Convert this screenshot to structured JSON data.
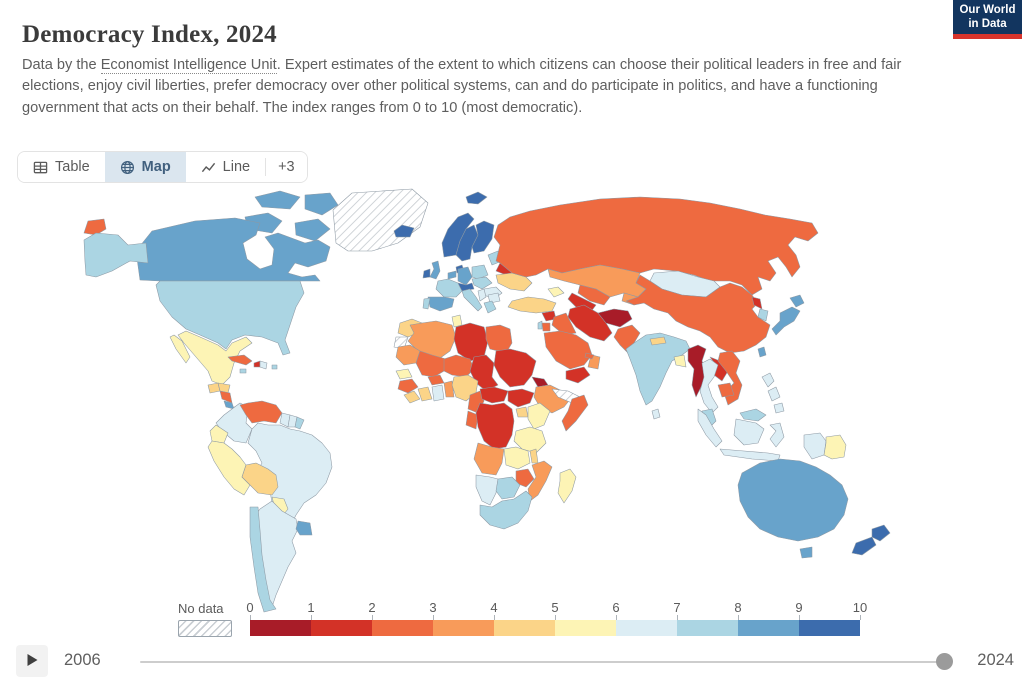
{
  "branding": {
    "logo_text": "Our World in Data"
  },
  "header": {
    "title": "Democracy Index, 2024"
  },
  "subtitle": {
    "prefix": "Data by the ",
    "link_text": "Economist Intelligence Unit",
    "suffix": ". Expert estimates of the extent to which citizens can choose their political leaders in free and fair elections, enjoy civil liberties, prefer democracy over other political systems, can and do participate in politics, and have a functioning government that acts on their behalf. The index ranges from 0 to 10 (most democratic)."
  },
  "tabs": [
    {
      "label": "Table",
      "icon": "table-icon",
      "active": false
    },
    {
      "label": "Map",
      "icon": "globe-icon",
      "active": true
    },
    {
      "label": "Line",
      "icon": "line-chart-icon",
      "active": false
    },
    {
      "label": "+3",
      "icon": null,
      "active": false
    }
  ],
  "legend": {
    "no_data_label": "No data",
    "ticks": [
      "0",
      "1",
      "2",
      "3",
      "4",
      "5",
      "6",
      "7",
      "8",
      "9",
      "10"
    ]
  },
  "timeline": {
    "start_year": "2006",
    "end_year": "2024",
    "handle_position": "end"
  },
  "chart_data": {
    "type": "heatmap",
    "subtype": "choropleth-world-map",
    "title": "Democracy Index, 2024",
    "value_range": [
      0,
      10
    ],
    "legend_position": "bottom",
    "no_data_style": "diagonal-hatch",
    "legend_bins": [
      {
        "min": 0,
        "max": 1,
        "color": "#a81c28"
      },
      {
        "min": 1,
        "max": 2,
        "color": "#d33227"
      },
      {
        "min": 2,
        "max": 3,
        "color": "#ee6a40"
      },
      {
        "min": 3,
        "max": 4,
        "color": "#f89b5a"
      },
      {
        "min": 4,
        "max": 5,
        "color": "#fbd488"
      },
      {
        "min": 5,
        "max": 6,
        "color": "#fdf4b5"
      },
      {
        "min": 6,
        "max": 7,
        "color": "#dcedf4"
      },
      {
        "min": 7,
        "max": 8,
        "color": "#abd5e3"
      },
      {
        "min": 8,
        "max": 9,
        "color": "#68a3cb"
      },
      {
        "min": 9,
        "max": 10,
        "color": "#3c6cad"
      }
    ],
    "countries": [
      {
        "name": "Canada",
        "value": 8.69
      },
      {
        "name": "United States",
        "value": 7.85
      },
      {
        "name": "Greenland",
        "value": null
      },
      {
        "name": "Iceland",
        "value": 9.45
      },
      {
        "name": "Mexico",
        "value": 5.32
      },
      {
        "name": "Guatemala",
        "value": 4.31
      },
      {
        "name": "Honduras",
        "value": 4.95
      },
      {
        "name": "Nicaragua",
        "value": 2.26
      },
      {
        "name": "Costa Rica",
        "value": 8.29
      },
      {
        "name": "Panama",
        "value": 6.75
      },
      {
        "name": "Cuba",
        "value": 2.5
      },
      {
        "name": "Haiti",
        "value": 1.36
      },
      {
        "name": "Dominican Republic",
        "value": 6.25
      },
      {
        "name": "Jamaica",
        "value": 7.06
      },
      {
        "name": "Puerto Rico",
        "value": 7.4
      },
      {
        "name": "Colombia",
        "value": 6.55
      },
      {
        "name": "Venezuela",
        "value": 2.23
      },
      {
        "name": "Guyana",
        "value": 6.26
      },
      {
        "name": "Suriname",
        "value": 6.6
      },
      {
        "name": "France (Guiana)",
        "value": 7.99
      },
      {
        "name": "Ecuador",
        "value": 5.45
      },
      {
        "name": "Peru",
        "value": 5.5
      },
      {
        "name": "Brazil",
        "value": 6.78
      },
      {
        "name": "Bolivia",
        "value": 4.2
      },
      {
        "name": "Paraguay",
        "value": 5.85
      },
      {
        "name": "Chile",
        "value": 7.95
      },
      {
        "name": "Argentina",
        "value": 6.62
      },
      {
        "name": "Uruguay",
        "value": 8.67
      },
      {
        "name": "Norway",
        "value": 9.81
      },
      {
        "name": "Sweden",
        "value": 9.39
      },
      {
        "name": "Finland",
        "value": 9.3
      },
      {
        "name": "Denmark",
        "value": 9.28
      },
      {
        "name": "United Kingdom",
        "value": 8.34
      },
      {
        "name": "Ireland",
        "value": 9.19
      },
      {
        "name": "Netherlands",
        "value": 8.96
      },
      {
        "name": "Germany",
        "value": 8.73
      },
      {
        "name": "France",
        "value": 7.99
      },
      {
        "name": "Spain",
        "value": 8.07
      },
      {
        "name": "Portugal",
        "value": 7.8
      },
      {
        "name": "Italy",
        "value": 7.69
      },
      {
        "name": "Switzerland",
        "value": 9.32
      },
      {
        "name": "Poland",
        "value": 7.18
      },
      {
        "name": "Czechia",
        "value": 7.97
      },
      {
        "name": "Lithuania",
        "value": 7.59
      },
      {
        "name": "Belarus",
        "value": 1.99
      },
      {
        "name": "Ukraine",
        "value": 4.9
      },
      {
        "name": "Romania",
        "value": 6.45
      },
      {
        "name": "Serbia",
        "value": 6.3
      },
      {
        "name": "Bulgaria",
        "value": 6.5
      },
      {
        "name": "Greece",
        "value": 7.86
      },
      {
        "name": "Russia",
        "value": 2.03
      },
      {
        "name": "Svalbard",
        "value": 9.81
      },
      {
        "name": "Turkey",
        "value": 4.26
      },
      {
        "name": "Georgia",
        "value": 5.2
      },
      {
        "name": "Kazakhstan",
        "value": 3.08
      },
      {
        "name": "Uzbekistan",
        "value": 2.12
      },
      {
        "name": "Turkmenistan",
        "value": 1.66
      },
      {
        "name": "Kyrgyzstan",
        "value": 3.9
      },
      {
        "name": "Mongolia",
        "value": 6.48
      },
      {
        "name": "China",
        "value": 2.11
      },
      {
        "name": "North Korea",
        "value": 1.08
      },
      {
        "name": "South Korea",
        "value": 7.75
      },
      {
        "name": "Japan",
        "value": 8.48
      },
      {
        "name": "Taiwan",
        "value": 8.78
      },
      {
        "name": "Afghanistan",
        "value": 0.25
      },
      {
        "name": "Iran",
        "value": 1.96
      },
      {
        "name": "Iraq",
        "value": 2.82
      },
      {
        "name": "Syria",
        "value": 1.43
      },
      {
        "name": "Israel",
        "value": 7.8
      },
      {
        "name": "Jordan",
        "value": 2.81
      },
      {
        "name": "Saudi Arabia",
        "value": 2.08
      },
      {
        "name": "Yemen",
        "value": 1.95
      },
      {
        "name": "Oman",
        "value": 3.12
      },
      {
        "name": "United Arab Emirates",
        "value": 2.9
      },
      {
        "name": "Pakistan",
        "value": 2.84
      },
      {
        "name": "India",
        "value": 7.29
      },
      {
        "name": "Nepal",
        "value": 4.6
      },
      {
        "name": "Bangladesh",
        "value": 5.7
      },
      {
        "name": "Sri Lanka",
        "value": 6.45
      },
      {
        "name": "Myanmar",
        "value": 0.96
      },
      {
        "name": "Thailand",
        "value": 6.19
      },
      {
        "name": "Laos",
        "value": 1.73
      },
      {
        "name": "Vietnam",
        "value": 2.58
      },
      {
        "name": "Cambodia",
        "value": 2.65
      },
      {
        "name": "Malaysia",
        "value": 7.45
      },
      {
        "name": "Indonesia",
        "value": 6.44
      },
      {
        "name": "Philippines",
        "value": 6.63
      },
      {
        "name": "Papua New Guinea",
        "value": 5.97
      },
      {
        "name": "Australia",
        "value": 8.85
      },
      {
        "name": "New Zealand",
        "value": 9.61
      },
      {
        "name": "Morocco",
        "value": 4.97
      },
      {
        "name": "Western Sahara",
        "value": null
      },
      {
        "name": "Algeria",
        "value": 3.66
      },
      {
        "name": "Tunisia",
        "value": 5.06
      },
      {
        "name": "Libya",
        "value": 1.7
      },
      {
        "name": "Egypt",
        "value": 2.65
      },
      {
        "name": "Mauritania",
        "value": 3.45
      },
      {
        "name": "Mali",
        "value": 2.2
      },
      {
        "name": "Niger",
        "value": 2.1
      },
      {
        "name": "Chad",
        "value": 1.55
      },
      {
        "name": "Sudan",
        "value": 1.0
      },
      {
        "name": "Eritrea",
        "value": 0.69
      },
      {
        "name": "Ethiopia",
        "value": 3.05
      },
      {
        "name": "Somaliland",
        "value": null
      },
      {
        "name": "Somalia",
        "value": 2.7
      },
      {
        "name": "South Sudan",
        "value": 1.6
      },
      {
        "name": "Senegal",
        "value": 5.7
      },
      {
        "name": "Guinea",
        "value": 2.48
      },
      {
        "name": "Sierra Leone",
        "value": 4.33
      },
      {
        "name": "Ivory Coast",
        "value": 4.22
      },
      {
        "name": "Burkina Faso",
        "value": 2.73
      },
      {
        "name": "Ghana",
        "value": 6.3
      },
      {
        "name": "Benin",
        "value": 3.5
      },
      {
        "name": "Nigeria",
        "value": 4.23
      },
      {
        "name": "Cameroon",
        "value": 2.56
      },
      {
        "name": "Central African Republic",
        "value": 1.18
      },
      {
        "name": "Congo",
        "value": 2.8
      },
      {
        "name": "DR Congo",
        "value": 1.4
      },
      {
        "name": "Uganda",
        "value": 4.49
      },
      {
        "name": "Kenya",
        "value": 5.05
      },
      {
        "name": "Tanzania",
        "value": 5.29
      },
      {
        "name": "Angola",
        "value": 3.96
      },
      {
        "name": "Zambia",
        "value": 5.25
      },
      {
        "name": "Malawi",
        "value": 4.6
      },
      {
        "name": "Mozambique",
        "value": 3.43
      },
      {
        "name": "Zimbabwe",
        "value": 2.92
      },
      {
        "name": "Namibia",
        "value": 6.55
      },
      {
        "name": "Botswana",
        "value": 7.51
      },
      {
        "name": "South Africa",
        "value": 7.16
      },
      {
        "name": "Madagascar",
        "value": 5.25
      }
    ]
  }
}
